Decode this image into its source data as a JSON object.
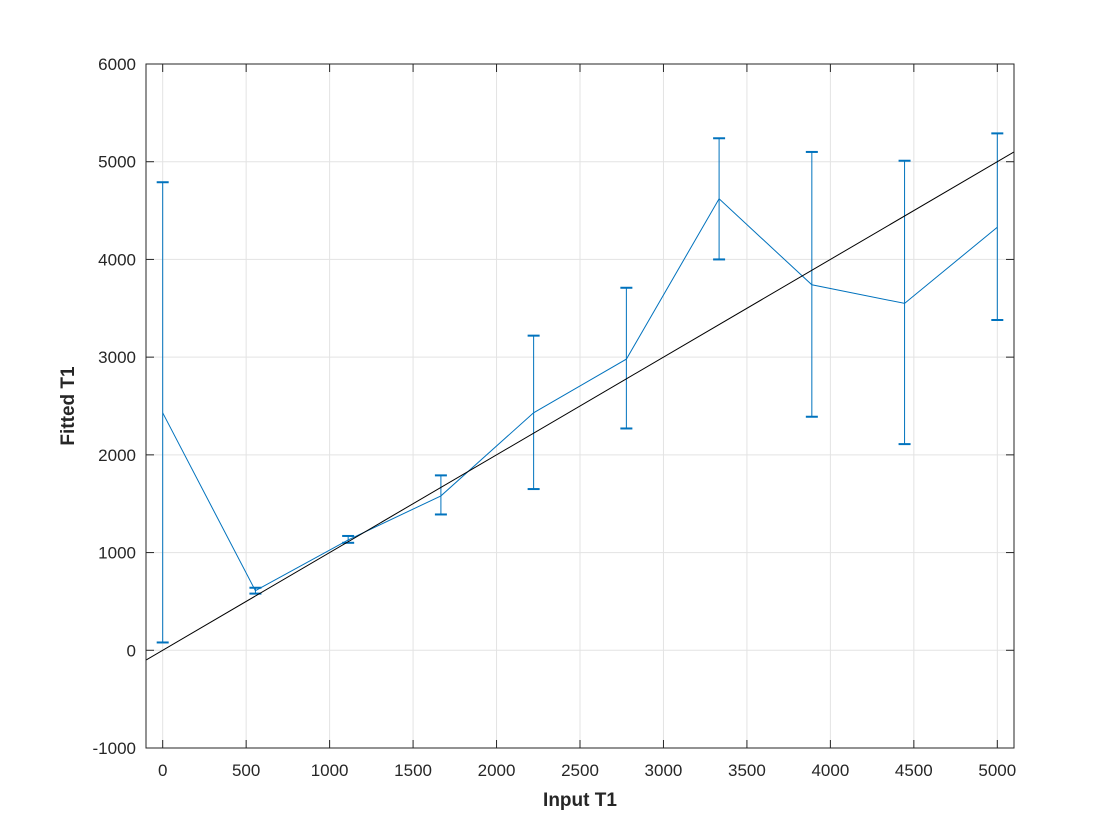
{
  "chart_data": {
    "type": "line",
    "title": "",
    "xlabel": "Input T1",
    "ylabel": "Fitted T1",
    "xlim": [
      -100,
      5100
    ],
    "ylim": [
      -1000,
      6000
    ],
    "xticks": [
      0,
      500,
      1000,
      1500,
      2000,
      2500,
      3000,
      3500,
      4000,
      4500,
      5000
    ],
    "yticks": [
      -1000,
      0,
      1000,
      2000,
      3000,
      4000,
      5000,
      6000
    ],
    "grid": true,
    "series": [
      {
        "kind": "errorbar",
        "color": "#0072BD",
        "x": [
          0,
          555.6,
          1111.1,
          1666.7,
          2222.2,
          2777.8,
          3333.3,
          3888.9,
          4444.4,
          5000
        ],
        "y": [
          2430,
          610,
          1130,
          1580,
          2430,
          2980,
          4620,
          3740,
          3550,
          4330
        ],
        "lower": [
          80,
          580,
          1100,
          1390,
          1650,
          2270,
          4000,
          2390,
          2110,
          3380
        ],
        "upper": [
          4790,
          640,
          1170,
          1790,
          3220,
          3710,
          5240,
          5100,
          5010,
          5290
        ]
      },
      {
        "kind": "reference-line",
        "color": "#000000",
        "x": [
          -100,
          5100
        ],
        "y": [
          -100,
          5100
        ]
      }
    ]
  }
}
